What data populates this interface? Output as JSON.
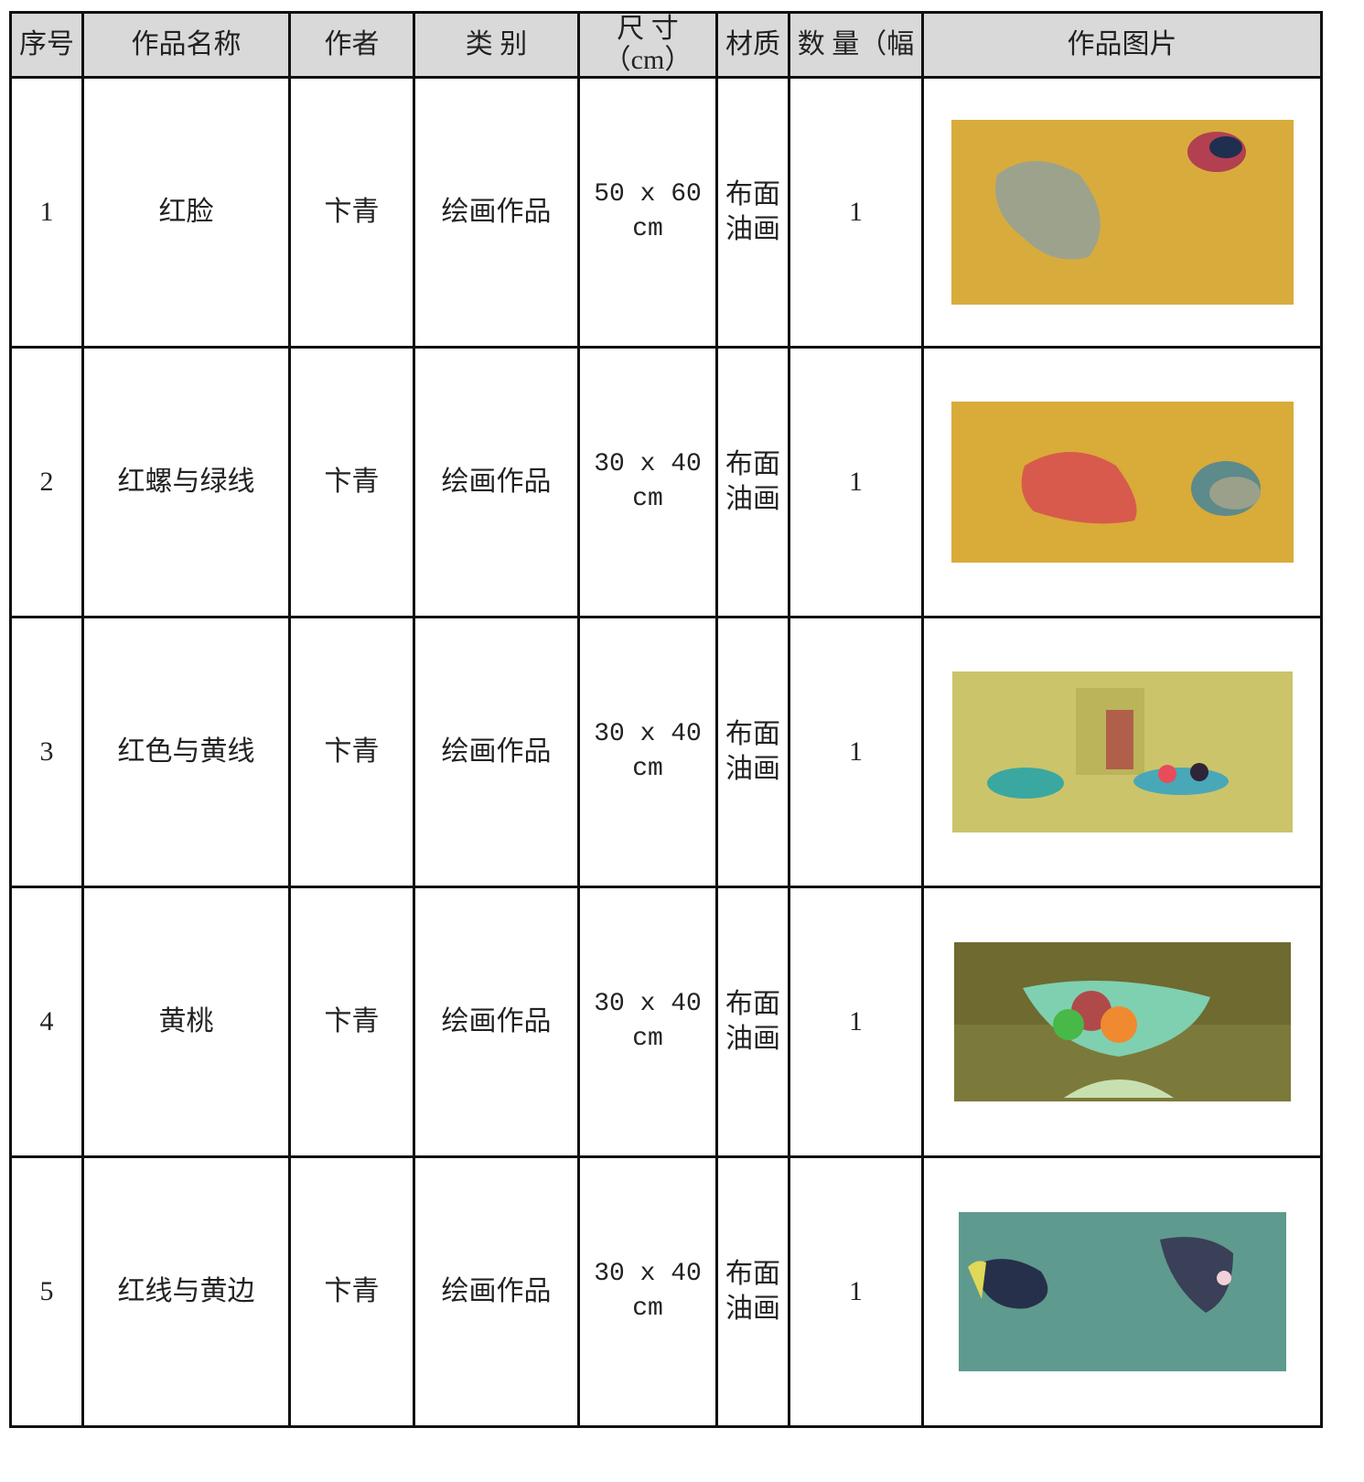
{
  "table": {
    "header": [
      "序号",
      "作品名称",
      "作者",
      "类 别",
      "尺 寸（cm）",
      "材质",
      "数 量（幅",
      "作品图片"
    ],
    "rows": [
      [
        "1",
        "红脸",
        "卞青",
        "绘画作品",
        "50 x 60 cm",
        "布面油画",
        "1"
      ],
      [
        "2",
        "红螺与绿线",
        "卞青",
        "绘画作品",
        "30 x 40 cm",
        "布面油画",
        "1"
      ],
      [
        "3",
        "红色与黄线",
        "卞青",
        "绘画作品",
        "30 x 40 cm",
        "布面油画",
        "1"
      ],
      [
        "4",
        "黄桃",
        "卞青",
        "绘画作品",
        "30 x 40 cm",
        "布面油画",
        "1"
      ],
      [
        "5",
        "红线与黄边",
        "卞青",
        "绘画作品",
        "30 x 40 cm",
        "布面油画",
        "1"
      ]
    ]
  }
}
